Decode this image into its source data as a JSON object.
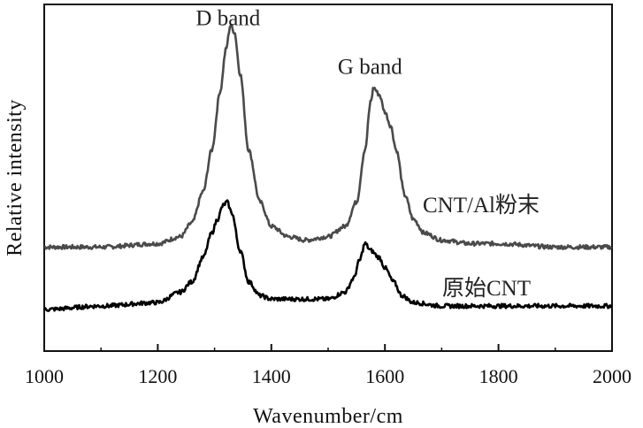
{
  "chart_data": {
    "type": "line",
    "title": "",
    "xlabel": "Wavenumber/cm",
    "ylabel": "Relative intensity",
    "xlim": [
      1000,
      2000
    ],
    "ylim": [
      0,
      1
    ],
    "xticks": [
      1000,
      1200,
      1400,
      1600,
      1800,
      2000
    ],
    "yticks_visible": false,
    "grid": false,
    "legend": "none",
    "annotations": [
      {
        "text": "D band",
        "x": 1330,
        "y": 0.93
      },
      {
        "text": "G band",
        "x": 1580,
        "y": 0.79
      }
    ],
    "series": [
      {
        "name": "CNT/Al粉末",
        "color": "#4a4a4a",
        "x": [
          1000,
          1100,
          1200,
          1240,
          1260,
          1280,
          1295,
          1310,
          1320,
          1328,
          1335,
          1345,
          1360,
          1380,
          1400,
          1430,
          1460,
          1500,
          1530,
          1550,
          1565,
          1575,
          1580,
          1590,
          1600,
          1610,
          1620,
          1635,
          1650,
          1670,
          1700,
          1750,
          1800,
          1900,
          2000
        ],
        "y": [
          0.3,
          0.3,
          0.31,
          0.33,
          0.37,
          0.46,
          0.58,
          0.75,
          0.87,
          0.94,
          0.92,
          0.8,
          0.58,
          0.43,
          0.36,
          0.33,
          0.32,
          0.33,
          0.36,
          0.43,
          0.58,
          0.72,
          0.76,
          0.74,
          0.69,
          0.65,
          0.58,
          0.45,
          0.38,
          0.34,
          0.32,
          0.31,
          0.31,
          0.3,
          0.3
        ]
      },
      {
        "name": "原始CNT",
        "color": "#000000",
        "x": [
          1000,
          1100,
          1200,
          1240,
          1260,
          1280,
          1295,
          1305,
          1315,
          1322,
          1330,
          1345,
          1360,
          1380,
          1400,
          1450,
          1500,
          1530,
          1545,
          1555,
          1565,
          1575,
          1590,
          1600,
          1615,
          1630,
          1650,
          1700,
          1800,
          1900,
          2000
        ],
        "y": [
          0.12,
          0.13,
          0.14,
          0.17,
          0.2,
          0.27,
          0.34,
          0.38,
          0.42,
          0.43,
          0.4,
          0.29,
          0.2,
          0.16,
          0.15,
          0.15,
          0.15,
          0.17,
          0.21,
          0.26,
          0.31,
          0.29,
          0.27,
          0.24,
          0.2,
          0.16,
          0.14,
          0.13,
          0.13,
          0.13,
          0.13
        ]
      }
    ]
  }
}
